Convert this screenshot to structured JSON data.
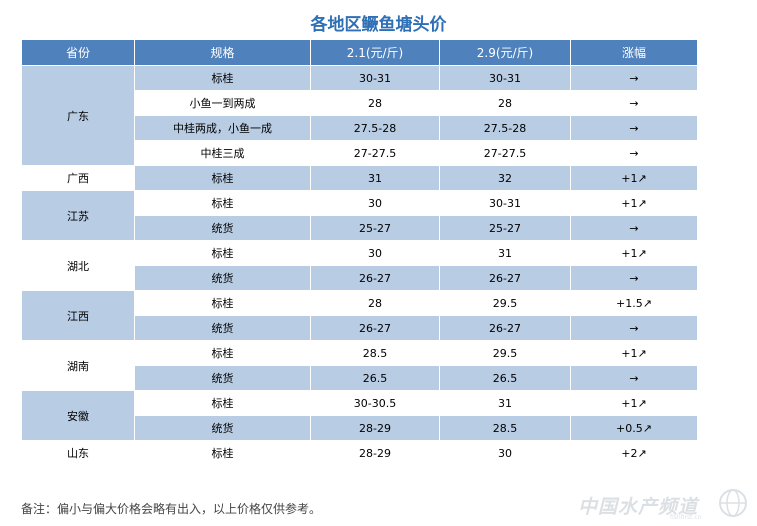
{
  "title": "各地区鳜鱼塘头价",
  "headers": [
    "省份",
    "规格",
    "2.1(元/斤)",
    "2.9(元/斤)",
    "涨幅"
  ],
  "groups": [
    {
      "province": "广东",
      "rows": [
        {
          "spec": "标桂",
          "p1": "30-31",
          "p2": "30-31",
          "change": "→",
          "up": false
        },
        {
          "spec": "小鱼一到两成",
          "p1": "28",
          "p2": "28",
          "change": "→",
          "up": false
        },
        {
          "spec": "中桂两成，小鱼一成",
          "p1": "27.5-28",
          "p2": "27.5-28",
          "change": "→",
          "up": false
        },
        {
          "spec": "中桂三成",
          "p1": "27-27.5",
          "p2": "27-27.5",
          "change": "→",
          "up": false
        }
      ]
    },
    {
      "province": "广西",
      "rows": [
        {
          "spec": "标桂",
          "p1": "31",
          "p2": "32",
          "change": "+1↗",
          "up": true
        }
      ]
    },
    {
      "province": "江苏",
      "rows": [
        {
          "spec": "标桂",
          "p1": "30",
          "p2": "30-31",
          "change": "+1↗",
          "up": true
        },
        {
          "spec": "统货",
          "p1": "25-27",
          "p2": "25-27",
          "change": "→",
          "up": false
        }
      ]
    },
    {
      "province": "湖北",
      "rows": [
        {
          "spec": "标桂",
          "p1": "30",
          "p2": "31",
          "change": "+1↗",
          "up": true
        },
        {
          "spec": "统货",
          "p1": "26-27",
          "p2": "26-27",
          "change": "→",
          "up": false
        }
      ]
    },
    {
      "province": "江西",
      "rows": [
        {
          "spec": "标桂",
          "p1": "28",
          "p2": "29.5",
          "change": "+1.5↗",
          "up": true
        },
        {
          "spec": "统货",
          "p1": "26-27",
          "p2": "26-27",
          "change": "→",
          "up": false
        }
      ]
    },
    {
      "province": "湖南",
      "rows": [
        {
          "spec": "标桂",
          "p1": "28.5",
          "p2": "29.5",
          "change": "+1↗",
          "up": true
        },
        {
          "spec": "统货",
          "p1": "26.5",
          "p2": "26.5",
          "change": "→",
          "up": false
        }
      ]
    },
    {
      "province": "安徽",
      "rows": [
        {
          "spec": "标桂",
          "p1": "30-30.5",
          "p2": "31",
          "change": "+1↗",
          "up": true
        },
        {
          "spec": "统货",
          "p1": "28-29",
          "p2": "28.5",
          "change": "+0.5↗",
          "up": true
        }
      ]
    },
    {
      "province": "山东",
      "rows": [
        {
          "spec": "标桂",
          "p1": "28-29",
          "p2": "30",
          "change": "+2↗",
          "up": true
        }
      ]
    }
  ],
  "note": "备注：偏小与偏大价格会略有出入，以上价格仅供参考。",
  "watermark": {
    "text": "中国水产频道",
    "sub": "fishfirst.cn",
    "icon": "globe-icon"
  },
  "colors": {
    "header": "#4f81bd",
    "band": "#b8cce4",
    "title": "#2f6fb6",
    "up": "#e00000"
  }
}
